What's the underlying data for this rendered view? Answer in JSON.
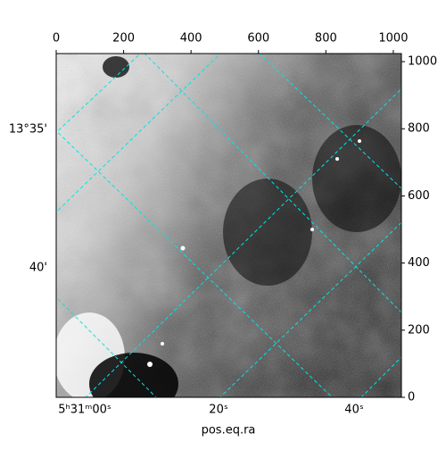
{
  "chart_data": {
    "type": "image",
    "xlabel": "pos.eq.ra",
    "xlim": [
      0,
      1024
    ],
    "xticks": [
      0,
      200,
      400,
      600,
      800,
      1000
    ],
    "ylim": [
      0,
      1024
    ],
    "yticks": [
      0,
      200,
      400,
      600,
      800,
      1000
    ],
    "ra_ticks": [
      "5ʰ31ᵐ00ˢ",
      "20ˢ",
      "40ˢ"
    ],
    "dec_ticks": [
      "13°35'",
      "40'"
    ],
    "grid_color": "#00e5e5"
  }
}
